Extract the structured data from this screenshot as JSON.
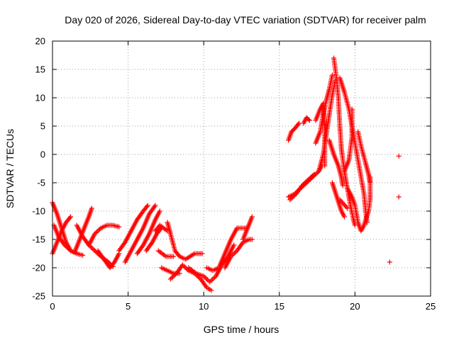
{
  "chart_data": {
    "type": "scatter",
    "title": "Day 020 of 2026, Sidereal Day-to-day VTEC variation (SDTVAR) for receiver palm",
    "xlabel": "GPS time / hours",
    "ylabel": "SDTVAR / TECUs",
    "xlim": [
      0,
      25
    ],
    "ylim": [
      -25,
      20
    ],
    "xticks": [
      0,
      5,
      10,
      15,
      20,
      25
    ],
    "yticks": [
      -25,
      -20,
      -15,
      -10,
      -5,
      0,
      5,
      10,
      15,
      20
    ],
    "xtick_labels": [
      "0",
      "5",
      "10",
      "15",
      "20",
      "25"
    ],
    "ytick_labels": [
      "-25",
      "-20",
      "-15",
      "-10",
      "-5",
      "0",
      "5",
      "10",
      "15",
      "20"
    ],
    "grid": true,
    "marker": "+",
    "series": [
      {
        "name": "SDTVAR",
        "color": "#ff0000",
        "tracks": [
          [
            [
              0.0,
              -8.5
            ],
            [
              0.3,
              -10.5
            ],
            [
              0.6,
              -13.0
            ],
            [
              0.9,
              -15.5
            ],
            [
              1.2,
              -17.0
            ],
            [
              1.6,
              -17.5
            ]
          ],
          [
            [
              0.0,
              -17.5
            ],
            [
              0.3,
              -15.5
            ],
            [
              0.6,
              -13.5
            ],
            [
              0.9,
              -12.0
            ],
            [
              1.2,
              -11.0
            ]
          ],
          [
            [
              0.1,
              -12.5
            ],
            [
              0.4,
              -14.5
            ],
            [
              0.8,
              -16.0
            ],
            [
              1.2,
              -17.0
            ],
            [
              1.6,
              -17.5
            ],
            [
              2.0,
              -17.8
            ]
          ],
          [
            [
              1.5,
              -17.0
            ],
            [
              1.8,
              -15.0
            ],
            [
              2.1,
              -13.0
            ],
            [
              2.4,
              -11.0
            ],
            [
              2.6,
              -9.5
            ]
          ],
          [
            [
              1.6,
              -12.5
            ],
            [
              2.0,
              -14.5
            ],
            [
              2.4,
              -16.0
            ],
            [
              2.8,
              -17.0
            ],
            [
              3.2,
              -18.0
            ],
            [
              3.7,
              -19.0
            ],
            [
              4.0,
              -19.8
            ]
          ],
          [
            [
              2.4,
              -16.0
            ],
            [
              2.8,
              -14.0
            ],
            [
              3.2,
              -13.0
            ],
            [
              3.6,
              -12.5
            ],
            [
              4.0,
              -12.5
            ],
            [
              4.4,
              -12.8
            ]
          ],
          [
            [
              3.0,
              -17.0
            ],
            [
              3.4,
              -18.5
            ],
            [
              3.8,
              -20.0
            ],
            [
              4.1,
              -19.0
            ],
            [
              4.4,
              -17.5
            ]
          ],
          [
            [
              4.4,
              -17.0
            ],
            [
              4.8,
              -15.5
            ],
            [
              5.2,
              -13.5
            ],
            [
              5.6,
              -11.5
            ],
            [
              6.0,
              -10.0
            ],
            [
              6.3,
              -9.0
            ]
          ],
          [
            [
              4.8,
              -19.0
            ],
            [
              5.2,
              -17.0
            ],
            [
              5.6,
              -15.0
            ],
            [
              6.0,
              -13.0
            ],
            [
              6.4,
              -10.5
            ],
            [
              6.8,
              -9.0
            ]
          ],
          [
            [
              5.6,
              -17.5
            ],
            [
              6.0,
              -16.0
            ],
            [
              6.4,
              -14.0
            ],
            [
              6.8,
              -11.5
            ],
            [
              7.1,
              -10.0
            ]
          ],
          [
            [
              6.2,
              -17.0
            ],
            [
              6.6,
              -15.5
            ],
            [
              6.9,
              -14.0
            ],
            [
              7.2,
              -13.0
            ]
          ],
          [
            [
              7.6,
              -12.0
            ],
            [
              7.8,
              -14.0
            ],
            [
              8.1,
              -17.0
            ],
            [
              8.4,
              -18.0
            ],
            [
              8.8,
              -18.5
            ],
            [
              9.4,
              -17.5
            ],
            [
              9.9,
              -17.5
            ]
          ],
          [
            [
              6.8,
              -13.5
            ],
            [
              7.1,
              -12.5
            ],
            [
              7.6,
              -13.5
            ]
          ],
          [
            [
              7.0,
              -17.0
            ],
            [
              7.5,
              -18.0
            ],
            [
              8.0,
              -18.0
            ]
          ],
          [
            [
              7.2,
              -20.0
            ],
            [
              7.6,
              -20.5
            ],
            [
              8.0,
              -21.0
            ],
            [
              8.4,
              -21.0
            ]
          ],
          [
            [
              7.8,
              -22.0
            ],
            [
              8.2,
              -21.0
            ],
            [
              8.6,
              -19.5
            ],
            [
              9.0,
              -20.5
            ],
            [
              9.4,
              -21.0
            ],
            [
              9.8,
              -22.0
            ],
            [
              10.2,
              -23.5
            ],
            [
              10.5,
              -24.0
            ]
          ],
          [
            [
              9.0,
              -20.0
            ],
            [
              9.5,
              -21.0
            ],
            [
              10.0,
              -21.5
            ],
            [
              10.4,
              -22.5
            ],
            [
              10.8,
              -21.5
            ],
            [
              11.2,
              -19.5
            ],
            [
              11.6,
              -18.0
            ],
            [
              12.0,
              -16.0
            ]
          ],
          [
            [
              10.2,
              -20.0
            ],
            [
              10.6,
              -20.5
            ],
            [
              11.0,
              -20.0
            ],
            [
              11.4,
              -17.5
            ],
            [
              11.8,
              -15.0
            ],
            [
              12.2,
              -13.0
            ],
            [
              12.6,
              -13.0
            ],
            [
              12.9,
              -13.0
            ]
          ],
          [
            [
              11.4,
              -20.0
            ],
            [
              11.8,
              -18.0
            ],
            [
              12.2,
              -17.0
            ],
            [
              12.6,
              -15.5
            ],
            [
              13.0,
              -15.0
            ],
            [
              13.2,
              -15.0
            ]
          ],
          [
            [
              12.6,
              -15.0
            ],
            [
              12.9,
              -13.0
            ],
            [
              13.2,
              -11.0
            ]
          ],
          [
            [
              15.6,
              2.5
            ],
            [
              15.8,
              4.0
            ],
            [
              16.0,
              4.5
            ],
            [
              16.3,
              5.5
            ]
          ],
          [
            [
              15.6,
              -7.5
            ],
            [
              16.0,
              -7.0
            ],
            [
              16.4,
              -6.0
            ],
            [
              16.8,
              -5.0
            ],
            [
              17.2,
              -4.0
            ],
            [
              17.6,
              -3.0
            ],
            [
              17.8,
              -2.0
            ]
          ],
          [
            [
              15.7,
              -8.0
            ],
            [
              16.1,
              -7.0
            ],
            [
              16.5,
              -5.5
            ],
            [
              16.9,
              -4.5
            ],
            [
              17.3,
              -3.5
            ]
          ],
          [
            [
              16.6,
              5.5
            ],
            [
              16.8,
              6.5
            ],
            [
              17.0,
              6.0
            ]
          ],
          [
            [
              17.4,
              2.0
            ],
            [
              17.7,
              4.0
            ],
            [
              17.9,
              7.0
            ],
            [
              18.1,
              9.5
            ],
            [
              18.3,
              11.5
            ],
            [
              18.5,
              14.0
            ]
          ],
          [
            [
              17.6,
              -3.0
            ],
            [
              17.9,
              0.0
            ],
            [
              18.1,
              3.5
            ],
            [
              18.3,
              7.0
            ],
            [
              18.5,
              10.5
            ],
            [
              18.7,
              13.0
            ]
          ],
          [
            [
              17.4,
              6.0
            ],
            [
              17.7,
              8.0
            ],
            [
              17.9,
              9.0
            ],
            [
              18.0,
              5.0
            ],
            [
              18.0,
              -2.0
            ]
          ],
          [
            [
              18.6,
              17.0
            ],
            [
              18.7,
              15.0
            ],
            [
              18.8,
              13.0
            ],
            [
              18.9,
              10.0
            ],
            [
              19.0,
              5.0
            ],
            [
              19.1,
              1.0
            ],
            [
              19.3,
              -3.0
            ],
            [
              19.5,
              -6.0
            ],
            [
              19.7,
              -9.0
            ],
            [
              19.9,
              -11.5
            ],
            [
              20.0,
              -12.5
            ]
          ],
          [
            [
              18.5,
              -5.0
            ],
            [
              18.8,
              -7.5
            ],
            [
              19.1,
              -10.0
            ],
            [
              19.3,
              -11.0
            ]
          ],
          [
            [
              19.0,
              13.5
            ],
            [
              19.3,
              11.0
            ],
            [
              19.6,
              8.0
            ],
            [
              19.8,
              5.0
            ],
            [
              20.0,
              2.0
            ],
            [
              20.2,
              -1.0
            ],
            [
              20.4,
              -4.0
            ],
            [
              20.6,
              -7.0
            ],
            [
              20.7,
              -10.0
            ],
            [
              20.8,
              -12.0
            ]
          ],
          [
            [
              19.5,
              -6.0
            ],
            [
              19.8,
              -7.5
            ],
            [
              20.0,
              -9.0
            ],
            [
              20.2,
              -12.0
            ],
            [
              20.4,
              -13.5
            ],
            [
              20.6,
              -12.5
            ],
            [
              20.9,
              -10.0
            ],
            [
              21.0,
              -8.0
            ],
            [
              21.0,
              -4.0
            ]
          ],
          [
            [
              19.3,
              -3.0
            ],
            [
              19.6,
              -1.0
            ],
            [
              19.8,
              3.0
            ],
            [
              19.8,
              8.0
            ]
          ],
          [
            [
              20.2,
              4.0
            ],
            [
              20.4,
              1.5
            ],
            [
              20.7,
              -1.5
            ],
            [
              20.9,
              -3.5
            ],
            [
              21.0,
              -5.0
            ]
          ],
          [
            [
              18.3,
              2.5
            ],
            [
              18.6,
              0.0
            ],
            [
              18.9,
              -2.0
            ],
            [
              19.1,
              -4.0
            ],
            [
              19.2,
              -5.5
            ]
          ],
          [
            [
              19.0,
              -8.0
            ],
            [
              19.5,
              -9.5
            ]
          ],
          [
            [
              22.3,
              -19.0
            ]
          ],
          [
            [
              22.9,
              -0.3
            ]
          ],
          [
            [
              22.9,
              -7.5
            ]
          ]
        ]
      }
    ]
  }
}
